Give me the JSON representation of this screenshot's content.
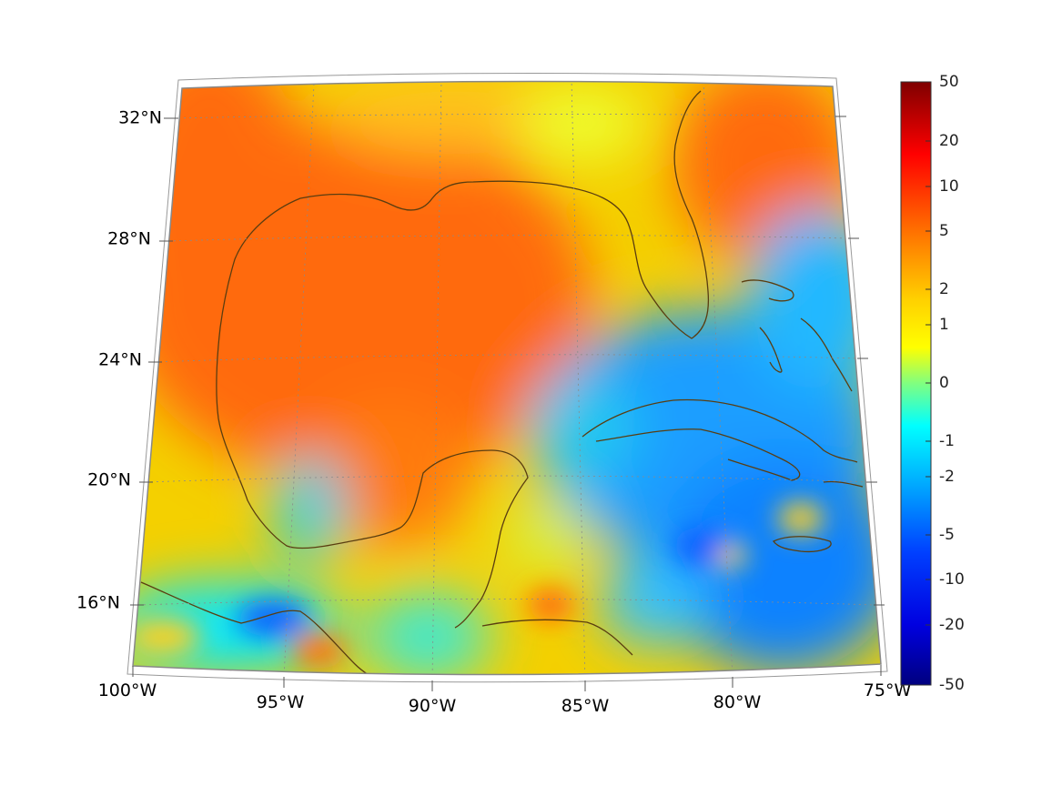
{
  "map": {
    "projection": "conic",
    "lon_range": [
      -100,
      -75
    ],
    "lat_range": [
      14,
      33
    ],
    "lon_tick_labels": [
      "100°W",
      "95°W",
      "90°W",
      "85°W",
      "80°W",
      "75°W"
    ],
    "lat_tick_labels": [
      "32°N",
      "28°N",
      "24°N",
      "20°N",
      "16°N"
    ],
    "grid": true,
    "coastline_color": "#5a3d10",
    "land_masked": false
  },
  "colorbar": {
    "orientation": "vertical",
    "placement": "right",
    "colormap": "jet",
    "tick_labels": [
      "50",
      "20",
      "10",
      "5",
      "2",
      "1",
      "0",
      "-1",
      "-2",
      "-5",
      "-10",
      "-20",
      "-50"
    ],
    "range": [
      -50,
      50
    ]
  }
}
